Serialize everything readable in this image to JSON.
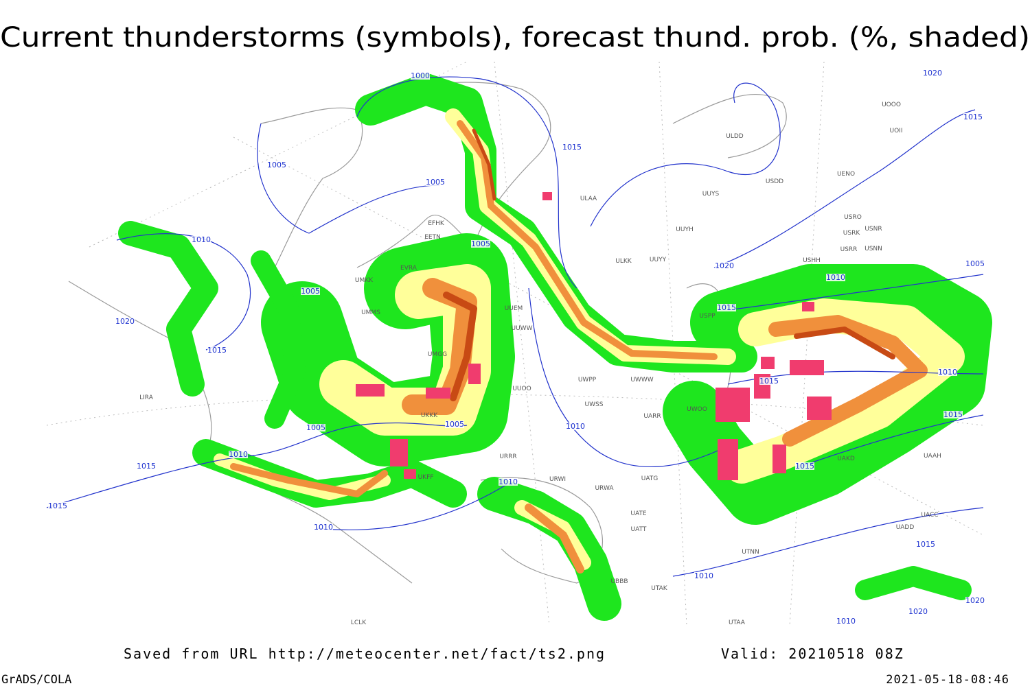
{
  "header": {
    "title": "Current thunderstorms (symbols), forecast thund. prob. (%, shaded)"
  },
  "footer": {
    "source": "Saved from URL http://meteocenter.net/fact/ts2.png",
    "valid": "Valid: 20210518 08Z",
    "software": "GrADS/COLA",
    "timestamp": "2021-05-18-08:46"
  },
  "isobar_labels": [
    "1000",
    "1005",
    "1005",
    "1010",
    "1005",
    "1015",
    "1005",
    "1020",
    "1015",
    "1005",
    "1005",
    "1010",
    "1015",
    "1015",
    "1010",
    "1010",
    "1010",
    "1020",
    "1015",
    "1010",
    "1015",
    "1010",
    "1015",
    "1015",
    "1015",
    "1010",
    "1020",
    "1015",
    "1005",
    "1020",
    "1020",
    "1010"
  ],
  "stations": [
    "ULAA",
    "ULDD",
    "UUYS",
    "USDD",
    "UUYH",
    "ULKK",
    "UUYY",
    "USRO",
    "USRK",
    "USNR",
    "USRR",
    "USNN",
    "USHH",
    "UOOO",
    "UOII",
    "UENO",
    "EFHK",
    "EETN",
    "EVRA",
    "UMKK",
    "UMMS",
    "UUEM",
    "UUWW",
    "UMGG",
    "UUOO",
    "UWPP",
    "UWSS",
    "UARR",
    "UWOO",
    "UWWW",
    "USPP",
    "UKKK",
    "URRR",
    "URWI",
    "URWA",
    "UATG",
    "UATE",
    "UATT",
    "UTNN",
    "UTAK",
    "UBBB",
    "UTAA",
    "UAKD",
    "UAAH",
    "UACC",
    "UADD",
    "LIRA",
    "LCLK",
    "UKFF"
  ]
}
